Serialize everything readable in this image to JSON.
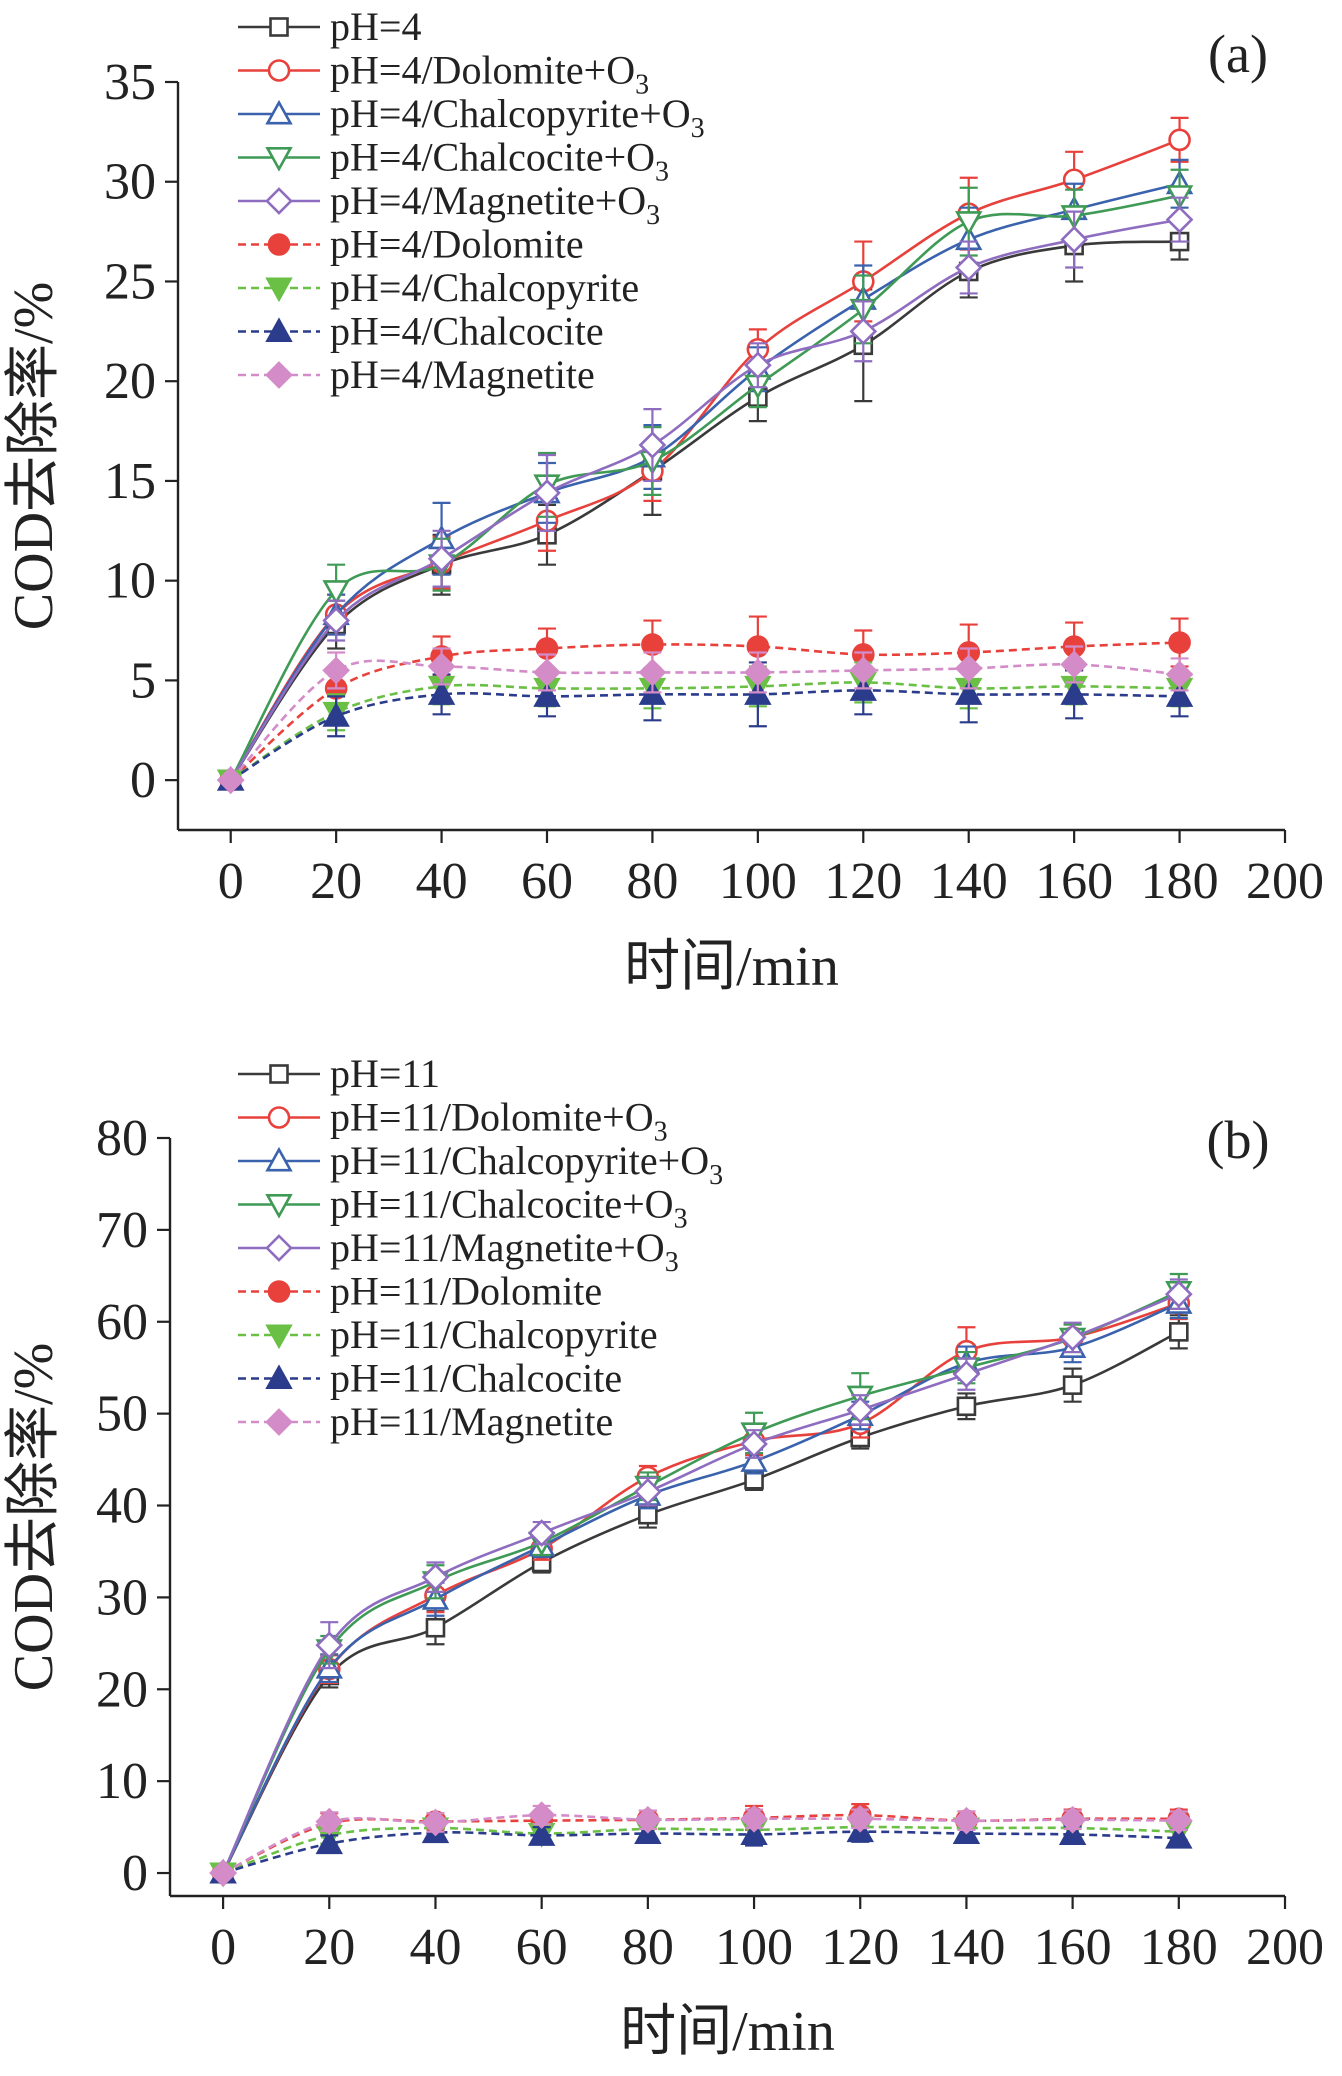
{
  "chart_data": [
    {
      "type": "line",
      "panel_label": "(a)",
      "xlabel": "时间/min",
      "ylabel": "COD去除率/%",
      "xlim": [
        -10,
        200
      ],
      "ylim": [
        -2.5,
        35
      ],
      "xticks": [
        0,
        20,
        40,
        60,
        80,
        100,
        120,
        140,
        160,
        180,
        200
      ],
      "yticks": [
        0,
        5,
        10,
        15,
        20,
        25,
        30,
        35
      ],
      "legend_position": "top-left",
      "x": [
        0,
        20,
        40,
        60,
        80,
        100,
        120,
        140,
        160,
        180
      ],
      "series": [
        {
          "name": "pH=4",
          "sub": "",
          "color": "#3a3a3a",
          "marker": "square",
          "filled": false,
          "dashed": false,
          "values": [
            0,
            7.8,
            10.8,
            12.3,
            15.5,
            19.2,
            21.8,
            25.5,
            26.8,
            27.0
          ],
          "errors": [
            0,
            1.2,
            1.5,
            1.5,
            2.2,
            1.2,
            2.8,
            1.3,
            1.8,
            0.9
          ]
        },
        {
          "name": "pH=4/Dolomite+O",
          "sub": "3",
          "color": "#e8413c",
          "marker": "circle",
          "filled": false,
          "dashed": false,
          "values": [
            0,
            8.3,
            10.9,
            13.0,
            15.5,
            21.6,
            25.0,
            28.4,
            30.1,
            32.1
          ],
          "errors": [
            0,
            1.0,
            1.3,
            1.5,
            1.5,
            1.0,
            2.0,
            1.8,
            1.4,
            1.1
          ]
        },
        {
          "name": "pH=4/Chalcopyrite+O",
          "sub": "3",
          "color": "#3a62ad",
          "marker": "triangle-up",
          "filled": false,
          "dashed": false,
          "values": [
            0,
            8.3,
            12.1,
            14.4,
            16.2,
            20.6,
            24.1,
            27.1,
            28.6,
            29.9
          ],
          "errors": [
            0,
            1.0,
            1.8,
            1.5,
            1.6,
            1.1,
            1.7,
            1.6,
            1.3,
            1.2
          ]
        },
        {
          "name": "pH=4/Chalcocite+O",
          "sub": "3",
          "color": "#3e9a55",
          "marker": "triangle-down",
          "filled": false,
          "dashed": false,
          "values": [
            0,
            9.5,
            10.8,
            14.8,
            16.0,
            19.8,
            23.6,
            28.0,
            28.3,
            29.3
          ],
          "errors": [
            0,
            1.3,
            1.3,
            1.6,
            1.7,
            1.1,
            1.7,
            1.7,
            1.3,
            1.3
          ]
        },
        {
          "name": "pH=4/Magnetite+O",
          "sub": "3",
          "color": "#8e6cc0",
          "marker": "diamond",
          "filled": false,
          "dashed": false,
          "values": [
            0,
            8.0,
            11.1,
            14.4,
            16.8,
            20.8,
            22.5,
            25.7,
            27.1,
            28.1
          ],
          "errors": [
            0,
            1.0,
            1.4,
            1.9,
            1.8,
            1.1,
            1.5,
            1.3,
            1.4,
            1.1
          ]
        },
        {
          "name": "pH=4/Dolomite",
          "sub": "",
          "color": "#e8413c",
          "marker": "circle",
          "filled": true,
          "dashed": true,
          "values": [
            0,
            4.6,
            6.2,
            6.6,
            6.8,
            6.7,
            6.3,
            6.4,
            6.7,
            6.9
          ],
          "errors": [
            0,
            0.9,
            1.0,
            1.0,
            1.2,
            1.5,
            1.2,
            1.4,
            1.2,
            1.2
          ]
        },
        {
          "name": "pH=4/Chalcopyrite",
          "sub": "",
          "color": "#6abf45",
          "marker": "triangle-down",
          "filled": true,
          "dashed": true,
          "values": [
            0,
            3.4,
            4.7,
            4.6,
            4.6,
            4.7,
            4.9,
            4.6,
            4.7,
            4.6
          ],
          "errors": [
            0,
            0.9,
            0.9,
            0.9,
            1.0,
            1.0,
            1.0,
            1.0,
            0.9,
            0.9
          ]
        },
        {
          "name": "pH=4/Chalcocite",
          "sub": "",
          "color": "#2c3c8c",
          "marker": "triangle-up",
          "filled": true,
          "dashed": true,
          "values": [
            0,
            3.2,
            4.3,
            4.2,
            4.3,
            4.3,
            4.5,
            4.3,
            4.3,
            4.2
          ],
          "errors": [
            0,
            1.0,
            1.0,
            1.0,
            1.3,
            1.6,
            1.2,
            1.4,
            1.2,
            1.0
          ]
        },
        {
          "name": "pH=4/Magnetite",
          "sub": "",
          "color": "#d48cc8",
          "marker": "diamond",
          "filled": true,
          "dashed": true,
          "values": [
            0,
            5.5,
            5.7,
            5.4,
            5.4,
            5.4,
            5.5,
            5.6,
            5.8,
            5.3
          ],
          "errors": [
            0,
            0.9,
            0.9,
            0.9,
            1.0,
            1.0,
            0.9,
            1.0,
            0.9,
            0.8
          ]
        }
      ]
    },
    {
      "type": "line",
      "panel_label": "(b)",
      "xlabel": "时间/min",
      "ylabel": "COD去除率/%",
      "xlim": [
        -10,
        200
      ],
      "ylim": [
        -2.5,
        80
      ],
      "xticks": [
        0,
        20,
        40,
        60,
        80,
        100,
        120,
        140,
        160,
        180,
        200
      ],
      "yticks": [
        0,
        10,
        20,
        30,
        40,
        50,
        60,
        70,
        80
      ],
      "legend_position": "top-left",
      "x": [
        0,
        20,
        40,
        60,
        80,
        100,
        120,
        140,
        160,
        180
      ],
      "series": [
        {
          "name": "pH=11",
          "sub": "",
          "color": "#3a3a3a",
          "marker": "square",
          "filled": false,
          "dashed": false,
          "values": [
            0,
            21.5,
            26.7,
            33.8,
            39.0,
            42.8,
            47.4,
            50.8,
            53.1,
            58.9
          ],
          "errors": [
            0,
            1.3,
            1.8,
            1.1,
            1.4,
            1.1,
            1.2,
            1.4,
            1.8,
            1.8
          ]
        },
        {
          "name": "pH=11/Dolomite+O",
          "sub": "3",
          "color": "#e8413c",
          "marker": "circle",
          "filled": false,
          "dashed": false,
          "values": [
            0,
            22.2,
            30.2,
            35.3,
            43.1,
            47.0,
            48.9,
            56.8,
            58.3,
            62.0
          ],
          "errors": [
            0,
            1.5,
            1.8,
            1.2,
            1.2,
            1.5,
            1.5,
            2.6,
            1.4,
            1.7
          ]
        },
        {
          "name": "pH=11/Chalcopyrite+O",
          "sub": "3",
          "color": "#3a62ad",
          "marker": "triangle-up",
          "filled": false,
          "dashed": false,
          "values": [
            0,
            22.3,
            29.8,
            35.6,
            41.1,
            44.8,
            49.8,
            55.5,
            57.2,
            62.0
          ],
          "errors": [
            0,
            1.5,
            1.8,
            1.2,
            1.4,
            1.3,
            1.5,
            1.8,
            1.6,
            1.6
          ]
        },
        {
          "name": "pH=11/Chalcocite+O",
          "sub": "3",
          "color": "#3e9a55",
          "marker": "triangle-down",
          "filled": false,
          "dashed": false,
          "values": [
            0,
            24.3,
            31.7,
            36.0,
            42.1,
            47.9,
            51.9,
            55.0,
            58.2,
            63.3
          ],
          "errors": [
            0,
            1.5,
            1.8,
            1.4,
            1.5,
            2.2,
            2.5,
            1.7,
            1.5,
            1.9
          ]
        },
        {
          "name": "pH=11/Magnetite+O",
          "sub": "3",
          "color": "#8e6cc0",
          "marker": "diamond",
          "filled": false,
          "dashed": false,
          "values": [
            0,
            24.8,
            32.2,
            37.0,
            41.5,
            46.7,
            50.4,
            54.3,
            58.3,
            63.0
          ],
          "errors": [
            0,
            2.5,
            1.6,
            1.2,
            1.5,
            1.5,
            1.6,
            1.7,
            1.6,
            1.6
          ]
        },
        {
          "name": "pH=11/Dolomite",
          "sub": "",
          "color": "#e8413c",
          "marker": "circle",
          "filled": true,
          "dashed": true,
          "values": [
            0,
            5.4,
            5.6,
            5.7,
            5.8,
            6.0,
            6.3,
            5.7,
            5.9,
            5.9
          ],
          "errors": [
            0,
            1.1,
            0.9,
            1.0,
            1.0,
            1.3,
            1.2,
            1.0,
            1.0,
            1.0
          ]
        },
        {
          "name": "pH=11/Chalcopyrite",
          "sub": "",
          "color": "#6abf45",
          "marker": "triangle-down",
          "filled": true,
          "dashed": true,
          "values": [
            0,
            4.1,
            4.9,
            4.3,
            4.8,
            4.7,
            5.0,
            4.9,
            4.9,
            4.5
          ],
          "errors": [
            0,
            0.9,
            0.9,
            0.9,
            0.9,
            1.0,
            1.0,
            0.9,
            0.9,
            0.9
          ]
        },
        {
          "name": "pH=11/Chalcocite",
          "sub": "",
          "color": "#2c3c8c",
          "marker": "triangle-up",
          "filled": true,
          "dashed": true,
          "values": [
            0,
            3.2,
            4.4,
            4.1,
            4.3,
            4.2,
            4.5,
            4.3,
            4.2,
            3.8
          ],
          "errors": [
            0,
            0.9,
            0.9,
            0.9,
            1.0,
            1.2,
            1.1,
            1.0,
            0.9,
            0.9
          ]
        },
        {
          "name": "pH=11/Magnetite",
          "sub": "",
          "color": "#d48cc8",
          "marker": "diamond",
          "filled": true,
          "dashed": true,
          "values": [
            0,
            5.6,
            5.5,
            6.3,
            5.8,
            5.9,
            5.9,
            5.7,
            5.8,
            5.7
          ],
          "errors": [
            0,
            1.0,
            1.0,
            1.0,
            1.0,
            1.0,
            1.0,
            1.0,
            1.0,
            1.0
          ]
        }
      ]
    }
  ]
}
